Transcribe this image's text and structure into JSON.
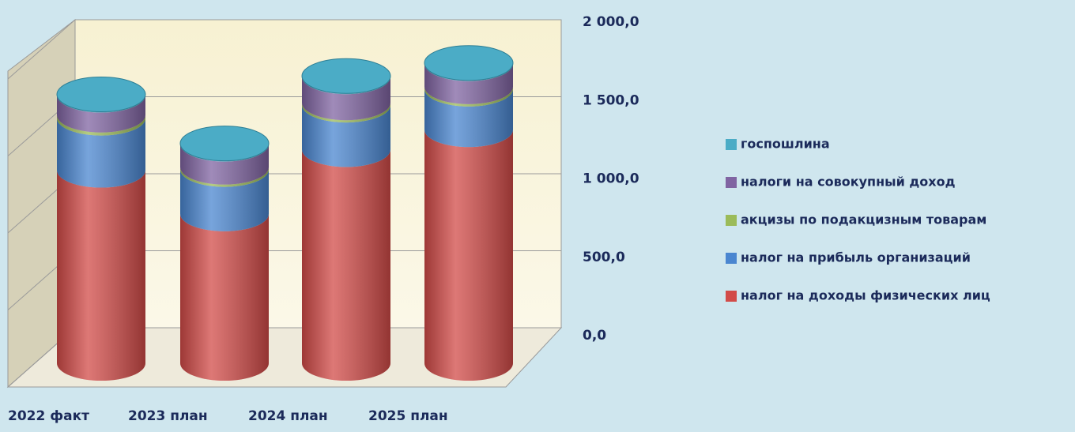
{
  "chart_data": {
    "type": "bar3d-stacked",
    "categories": [
      "2022 факт",
      "2023 план",
      "2024 план",
      "2025 план"
    ],
    "series": [
      {
        "name": "налог на доходы физических лиц",
        "color": "#d24b48",
        "values": [
          1260,
          975,
          1395,
          1525
        ]
      },
      {
        "name": "налог на прибыль организаций",
        "color": "#4a86d0",
        "values": [
          340,
          290,
          290,
          265
        ]
      },
      {
        "name": "акцизы по подакцизным товарам",
        "color": "#9bbb59",
        "values": [
          20,
          15,
          15,
          15
        ]
      },
      {
        "name": "налоги на совокупный доход",
        "color": "#8064a2",
        "values": [
          130,
          150,
          170,
          150
        ]
      },
      {
        "name": "госпошлина",
        "color": "#4bacc6",
        "values": [
          5,
          5,
          5,
          5
        ]
      }
    ],
    "ylim": [
      0,
      2000
    ],
    "yticks": [
      {
        "value": 0,
        "label": "0,0"
      },
      {
        "value": 500,
        "label": "500,0"
      },
      {
        "value": 1000,
        "label": "1 000,0"
      },
      {
        "value": 1500,
        "label": "1 500,0"
      },
      {
        "value": 2000,
        "label": "2 000,0"
      }
    ],
    "grid": true
  }
}
